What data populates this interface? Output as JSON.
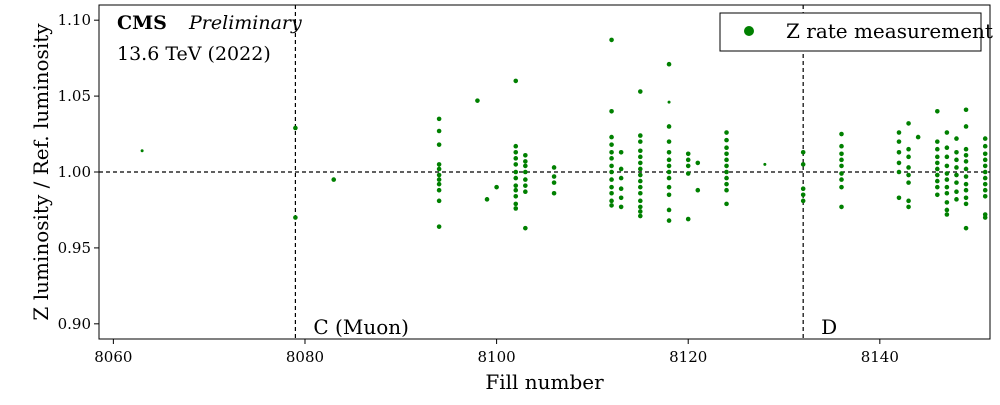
{
  "chart_data": {
    "type": "scatter",
    "experiment": "CMS",
    "status": "Preliminary",
    "energy_label": "13.6 TeV (2022)",
    "xlabel": "Fill number",
    "ylabel": "Z luminosity / Ref. luminosity",
    "xlim": [
      8058.5,
      8151.5
    ],
    "ylim": [
      0.89,
      1.11
    ],
    "xticks": [
      8060,
      8080,
      8100,
      8120,
      8140
    ],
    "yticks": [
      0.9,
      0.95,
      1.0,
      1.05,
      1.1
    ],
    "ytick_labels": [
      "0.90",
      "0.95",
      "1.00",
      "1.05",
      "1.10"
    ],
    "grid": false,
    "legend_position": "top-right",
    "series": [
      {
        "name": "Z rate measurement",
        "color": "#008000",
        "points": [
          [
            8063,
            1.014
          ],
          [
            8079,
            1.029
          ],
          [
            8079,
            0.97
          ],
          [
            8083,
            0.995
          ],
          [
            8094,
            1.035
          ],
          [
            8094,
            1.027
          ],
          [
            8094,
            1.018
          ],
          [
            8094,
            1.005
          ],
          [
            8094,
            1.002
          ],
          [
            8094,
            0.998
          ],
          [
            8094,
            0.995
          ],
          [
            8094,
            0.992
          ],
          [
            8094,
            0.988
          ],
          [
            8094,
            0.981
          ],
          [
            8094,
            0.964
          ],
          [
            8098,
            1.047
          ],
          [
            8099,
            0.982
          ],
          [
            8100,
            0.99
          ],
          [
            8102,
            1.06
          ],
          [
            8102,
            1.017
          ],
          [
            8102,
            1.013
          ],
          [
            8102,
            1.009
          ],
          [
            8102,
            1.005
          ],
          [
            8102,
            1.0
          ],
          [
            8102,
            0.996
          ],
          [
            8102,
            0.991
          ],
          [
            8102,
            0.988
          ],
          [
            8102,
            0.984
          ],
          [
            8102,
            0.979
          ],
          [
            8102,
            0.976
          ],
          [
            8103,
            1.011
          ],
          [
            8103,
            1.007
          ],
          [
            8103,
            1.004
          ],
          [
            8103,
            1.0
          ],
          [
            8103,
            0.995
          ],
          [
            8103,
            0.991
          ],
          [
            8103,
            0.987
          ],
          [
            8103,
            0.963
          ],
          [
            8106,
            1.003
          ],
          [
            8106,
            0.997
          ],
          [
            8106,
            0.993
          ],
          [
            8106,
            0.986
          ],
          [
            8112,
            1.087
          ],
          [
            8112,
            1.04
          ],
          [
            8112,
            1.023
          ],
          [
            8112,
            1.018
          ],
          [
            8112,
            1.013
          ],
          [
            8112,
            1.009
          ],
          [
            8112,
            1.004
          ],
          [
            8112,
            1.0
          ],
          [
            8112,
            0.995
          ],
          [
            8112,
            0.99
          ],
          [
            8112,
            0.986
          ],
          [
            8112,
            0.981
          ],
          [
            8112,
            0.978
          ],
          [
            8113,
            1.013
          ],
          [
            8113,
            1.002
          ],
          [
            8113,
            0.996
          ],
          [
            8113,
            0.989
          ],
          [
            8113,
            0.983
          ],
          [
            8113,
            0.977
          ],
          [
            8115,
            1.053
          ],
          [
            8115,
            1.024
          ],
          [
            8115,
            1.02
          ],
          [
            8115,
            1.014
          ],
          [
            8115,
            1.01
          ],
          [
            8115,
            1.006
          ],
          [
            8115,
            1.002
          ],
          [
            8115,
            0.998
          ],
          [
            8115,
            0.994
          ],
          [
            8115,
            0.99
          ],
          [
            8115,
            0.986
          ],
          [
            8115,
            0.981
          ],
          [
            8115,
            0.977
          ],
          [
            8115,
            0.974
          ],
          [
            8115,
            0.971
          ],
          [
            8118,
            1.071
          ],
          [
            8118,
            1.046
          ],
          [
            8118,
            1.03
          ],
          [
            8118,
            1.02
          ],
          [
            8118,
            1.013
          ],
          [
            8118,
            1.008
          ],
          [
            8118,
            1.004
          ],
          [
            8118,
            1.0
          ],
          [
            8118,
            0.996
          ],
          [
            8118,
            0.99
          ],
          [
            8118,
            0.985
          ],
          [
            8118,
            0.975
          ],
          [
            8118,
            0.968
          ],
          [
            8120,
            1.012
          ],
          [
            8120,
            1.008
          ],
          [
            8120,
            1.004
          ],
          [
            8120,
            0.999
          ],
          [
            8120,
            0.969
          ],
          [
            8121,
            1.006
          ],
          [
            8121,
            0.988
          ],
          [
            8124,
            1.026
          ],
          [
            8124,
            1.021
          ],
          [
            8124,
            1.016
          ],
          [
            8124,
            1.012
          ],
          [
            8124,
            1.008
          ],
          [
            8124,
            1.004
          ],
          [
            8124,
            1.0
          ],
          [
            8124,
            0.996
          ],
          [
            8124,
            0.992
          ],
          [
            8124,
            0.988
          ],
          [
            8124,
            0.979
          ],
          [
            8128,
            1.005
          ],
          [
            8132,
            1.013
          ],
          [
            8132,
            1.005
          ],
          [
            8132,
            0.989
          ],
          [
            8132,
            0.985
          ],
          [
            8132,
            0.981
          ],
          [
            8136,
            1.025
          ],
          [
            8136,
            1.017
          ],
          [
            8136,
            1.012
          ],
          [
            8136,
            1.008
          ],
          [
            8136,
            1.004
          ],
          [
            8136,
            0.999
          ],
          [
            8136,
            0.995
          ],
          [
            8136,
            0.99
          ],
          [
            8136,
            0.977
          ],
          [
            8142,
            1.026
          ],
          [
            8142,
            1.02
          ],
          [
            8142,
            1.013
          ],
          [
            8142,
            1.006
          ],
          [
            8142,
            1.0
          ],
          [
            8142,
            0.983
          ],
          [
            8143,
            1.032
          ],
          [
            8143,
            1.015
          ],
          [
            8143,
            1.01
          ],
          [
            8143,
            1.003
          ],
          [
            8143,
            0.998
          ],
          [
            8143,
            0.993
          ],
          [
            8143,
            0.981
          ],
          [
            8143,
            0.977
          ],
          [
            8144,
            1.023
          ],
          [
            8146,
            1.04
          ],
          [
            8146,
            1.02
          ],
          [
            8146,
            1.015
          ],
          [
            8146,
            1.01
          ],
          [
            8146,
            1.006
          ],
          [
            8146,
            1.002
          ],
          [
            8146,
            0.998
          ],
          [
            8146,
            0.994
          ],
          [
            8146,
            0.99
          ],
          [
            8146,
            0.985
          ],
          [
            8147,
            1.026
          ],
          [
            8147,
            1.016
          ],
          [
            8147,
            1.01
          ],
          [
            8147,
            1.004
          ],
          [
            8147,
            0.999
          ],
          [
            8147,
            0.995
          ],
          [
            8147,
            0.99
          ],
          [
            8147,
            0.986
          ],
          [
            8147,
            0.98
          ],
          [
            8147,
            0.975
          ],
          [
            8147,
            0.972
          ],
          [
            8148,
            1.022
          ],
          [
            8148,
            1.013
          ],
          [
            8148,
            1.008
          ],
          [
            8148,
            1.003
          ],
          [
            8148,
            0.998
          ],
          [
            8148,
            0.993
          ],
          [
            8148,
            0.987
          ],
          [
            8148,
            0.982
          ],
          [
            8149,
            1.041
          ],
          [
            8149,
            1.03
          ],
          [
            8149,
            1.015
          ],
          [
            8149,
            1.011
          ],
          [
            8149,
            1.007
          ],
          [
            8149,
            1.002
          ],
          [
            8149,
            0.997
          ],
          [
            8149,
            0.992
          ],
          [
            8149,
            0.988
          ],
          [
            8149,
            0.983
          ],
          [
            8149,
            0.979
          ],
          [
            8149,
            0.963
          ],
          [
            8151,
            1.022
          ],
          [
            8151,
            1.017
          ],
          [
            8151,
            1.012
          ],
          [
            8151,
            1.008
          ],
          [
            8151,
            1.004
          ],
          [
            8151,
            1.0
          ],
          [
            8151,
            0.996
          ],
          [
            8151,
            0.992
          ],
          [
            8151,
            0.988
          ],
          [
            8151,
            0.984
          ],
          [
            8151,
            0.972
          ],
          [
            8151,
            0.97
          ]
        ]
      }
    ],
    "reference_lines": [
      {
        "type": "horizontal",
        "value": 1.0,
        "style": "dashed"
      },
      {
        "type": "vertical",
        "value": 8079,
        "style": "dashed",
        "label": "C (Muon)"
      },
      {
        "type": "vertical",
        "value": 8132,
        "style": "dashed",
        "label": "D"
      }
    ]
  }
}
